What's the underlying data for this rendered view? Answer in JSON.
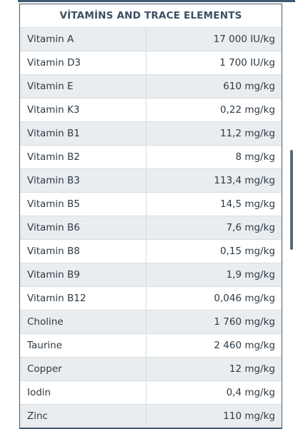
{
  "title": "VİTAMİNS AND TRACE ELEMENTS",
  "rows": [
    {
      "name": "Vitamin A",
      "value": "17 000 IU/kg"
    },
    {
      "name": "Vitamin D3",
      "value": "1 700 IU/kg"
    },
    {
      "name": "Vitamin E",
      "value": "610 mg/kg"
    },
    {
      "name": "Vitamin K3",
      "value": "0,22 mg/kg"
    },
    {
      "name": "Vitamin B1",
      "value": "11,2 mg/kg"
    },
    {
      "name": "Vitamin B2",
      "value": "8 mg/kg"
    },
    {
      "name": "Vitamin B3",
      "value": "113,4 mg/kg"
    },
    {
      "name": "Vitamin B5",
      "value": "14,5 mg/kg"
    },
    {
      "name": "Vitamin B6",
      "value": "7,6 mg/kg"
    },
    {
      "name": "Vitamin B8",
      "value": "0,15 mg/kg"
    },
    {
      "name": "Vitamin B9",
      "value": "1,9 mg/kg"
    },
    {
      "name": "Vitamin B12",
      "value": "0,046 mg/kg"
    },
    {
      "name": "Choline",
      "value": "1 760 mg/kg"
    },
    {
      "name": "Taurine",
      "value": "2 460 mg/kg"
    },
    {
      "name": "Copper",
      "value": "12 mg/kg"
    },
    {
      "name": "Iodin",
      "value": "0,4 mg/kg"
    },
    {
      "name": "Zinc",
      "value": "110 mg/kg"
    }
  ]
}
